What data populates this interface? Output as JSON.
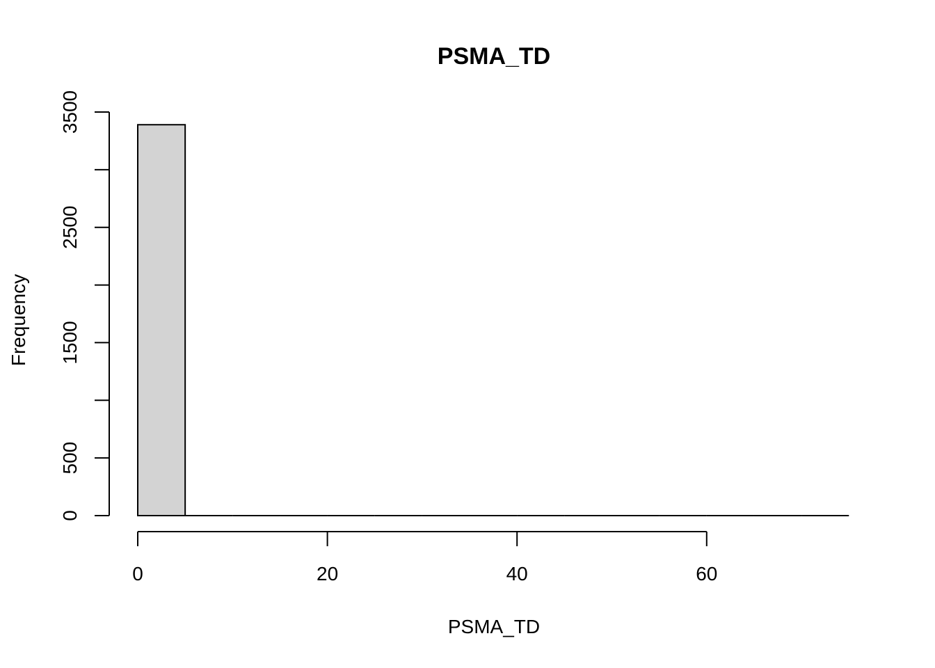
{
  "chart_data": {
    "type": "bar",
    "title": "PSMA_TD",
    "xlabel": "PSMA_TD",
    "ylabel": "Frequency",
    "bins": [
      {
        "x0": 0,
        "x1": 5,
        "count": 3390
      },
      {
        "x0": 5,
        "x1": 10,
        "count": 0
      },
      {
        "x0": 10,
        "x1": 15,
        "count": 0
      },
      {
        "x0": 15,
        "x1": 20,
        "count": 0
      },
      {
        "x0": 20,
        "x1": 25,
        "count": 0
      },
      {
        "x0": 25,
        "x1": 30,
        "count": 0
      },
      {
        "x0": 30,
        "x1": 35,
        "count": 0
      },
      {
        "x0": 35,
        "x1": 40,
        "count": 0
      },
      {
        "x0": 40,
        "x1": 45,
        "count": 0
      },
      {
        "x0": 45,
        "x1": 50,
        "count": 0
      },
      {
        "x0": 50,
        "x1": 55,
        "count": 0
      },
      {
        "x0": 55,
        "x1": 60,
        "count": 0
      },
      {
        "x0": 60,
        "x1": 65,
        "count": 0
      },
      {
        "x0": 65,
        "x1": 70,
        "count": 0
      },
      {
        "x0": 70,
        "x1": 75,
        "count": 0
      }
    ],
    "xlim": [
      0,
      75
    ],
    "ylim": [
      0,
      3500
    ],
    "x_ticks": [
      0,
      20,
      40,
      60
    ],
    "x_tick_labels": [
      "0",
      "20",
      "40",
      "60"
    ],
    "y_ticks": [
      0,
      500,
      1000,
      1500,
      2000,
      2500,
      3000,
      3500
    ],
    "y_tick_labels": [
      "0",
      "500",
      "",
      "1500",
      "",
      "2500",
      "",
      "3500"
    ],
    "grid": false,
    "bar_fill": "#d3d3d3",
    "bar_stroke": "#000000"
  }
}
